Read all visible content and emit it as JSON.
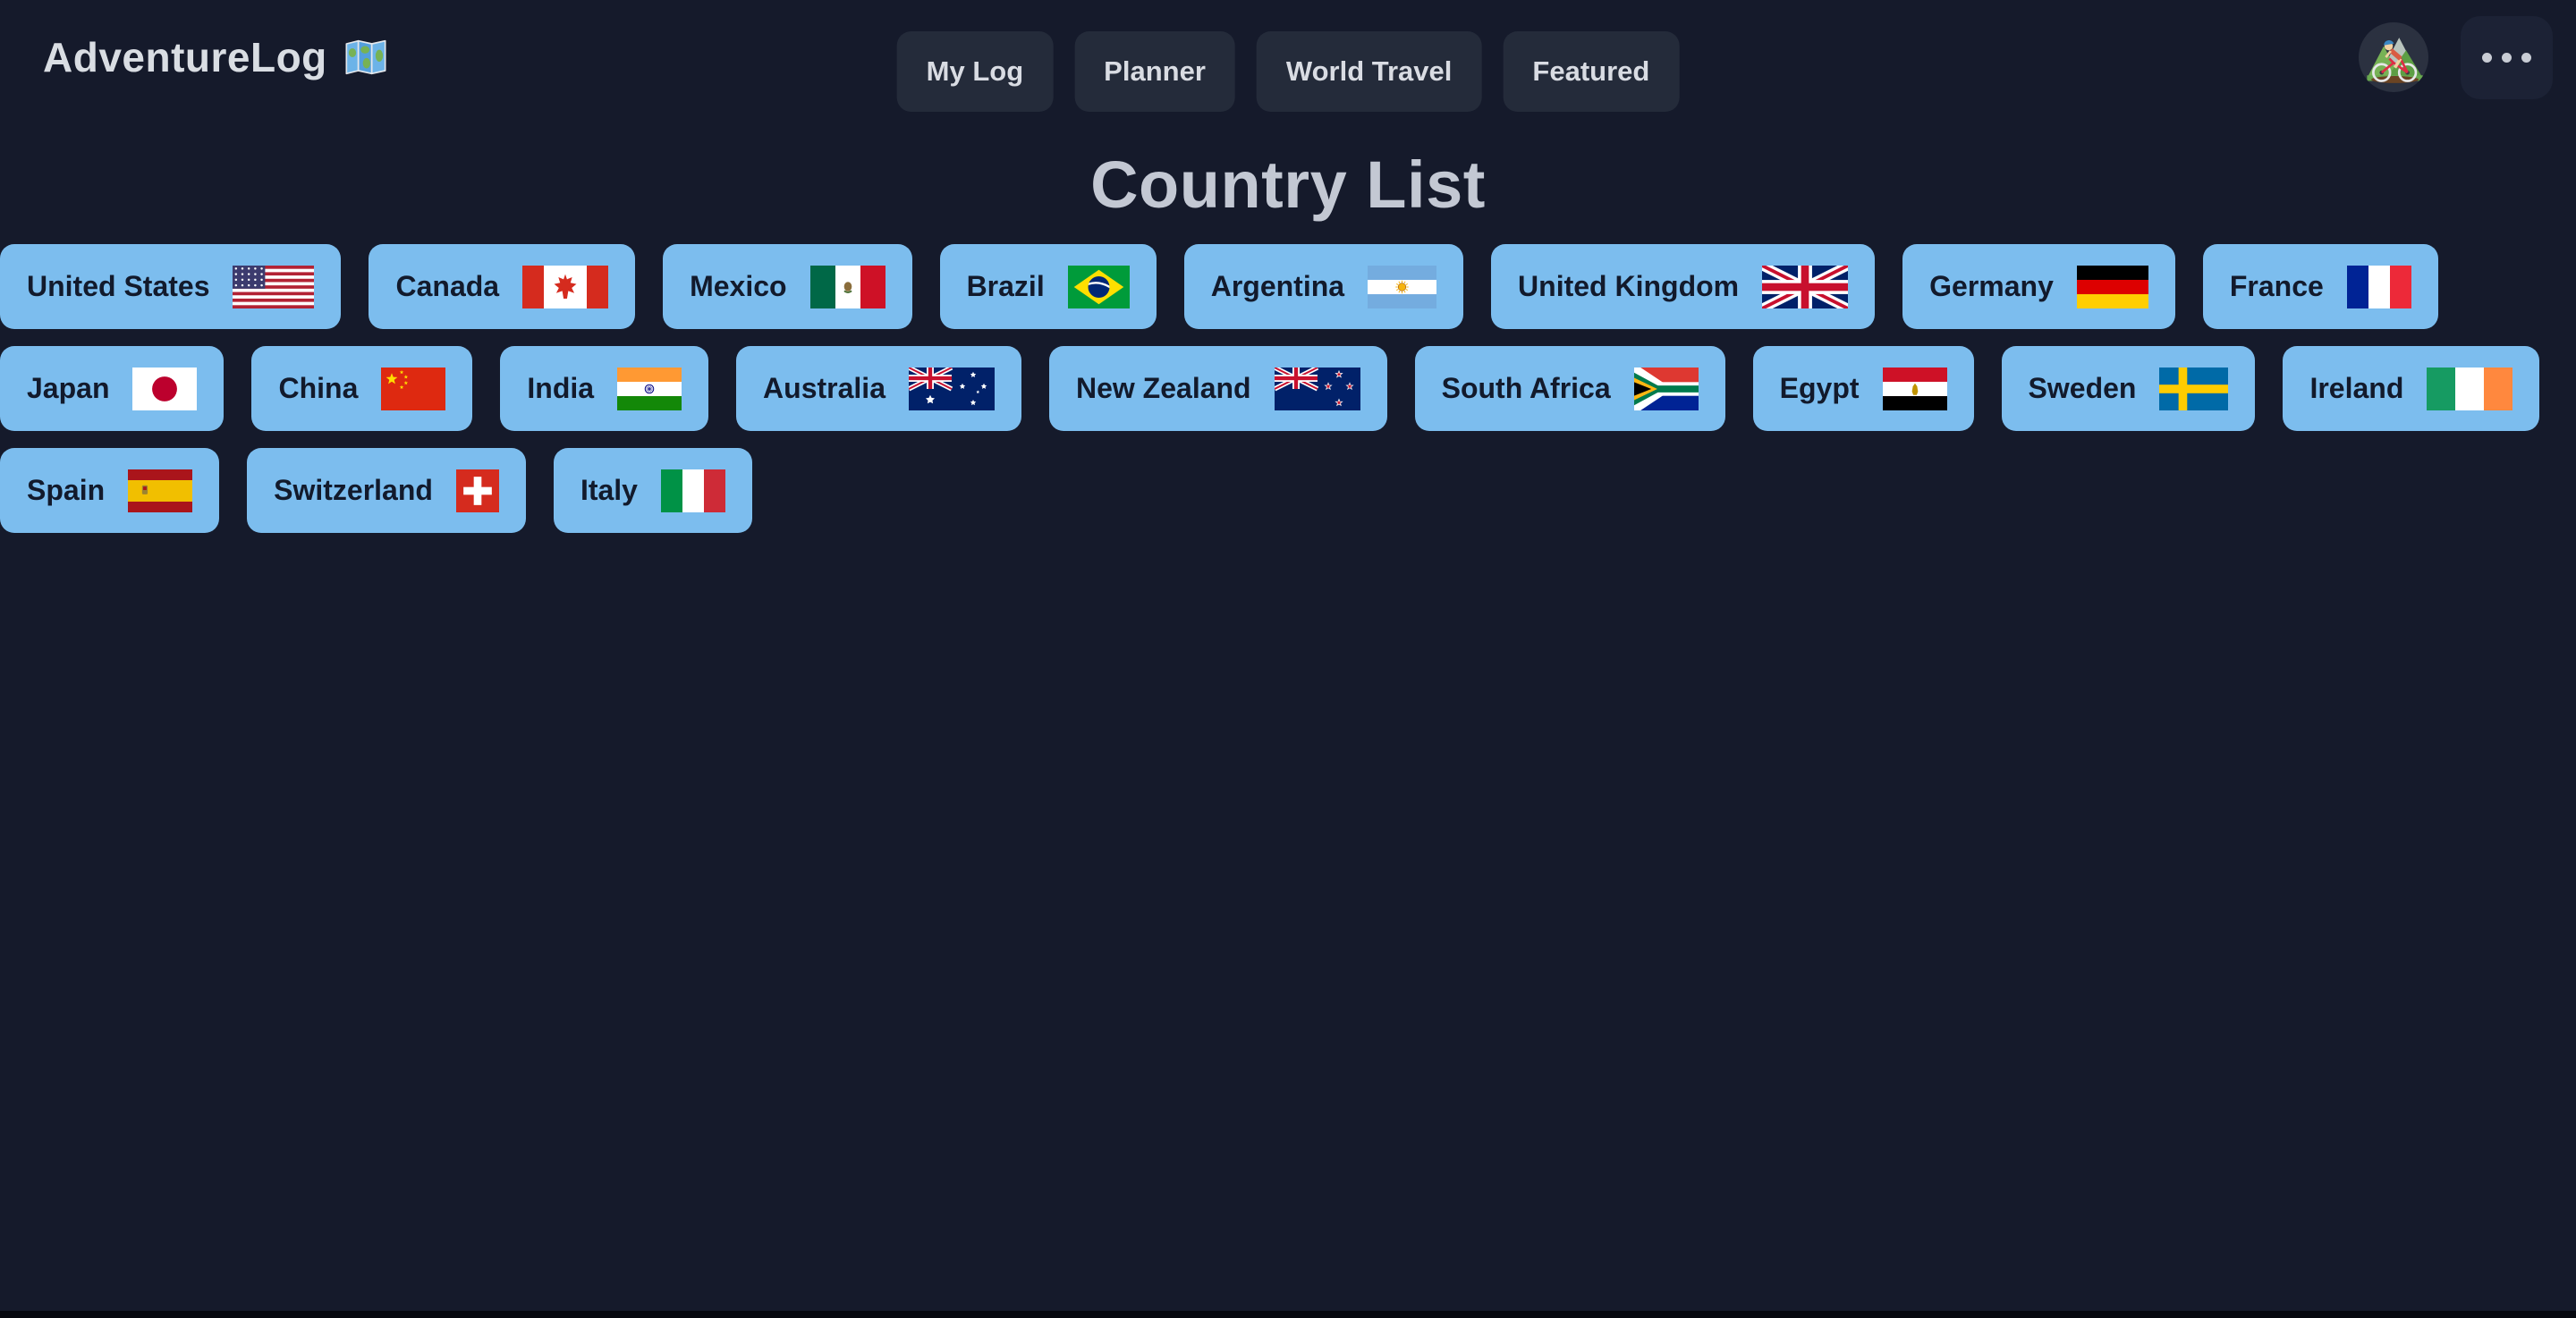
{
  "app": {
    "name": "AdventureLog",
    "logo_icon": "world-map"
  },
  "navbar": {
    "links": [
      {
        "label": "My Log"
      },
      {
        "label": "Planner"
      },
      {
        "label": "World Travel"
      },
      {
        "label": "Featured"
      }
    ],
    "avatar_icon": "mountain-biker",
    "more_menu_icon": "ellipsis"
  },
  "page": {
    "title": "Country List"
  },
  "countries": [
    {
      "name": "United States",
      "flag": "us"
    },
    {
      "name": "Canada",
      "flag": "ca"
    },
    {
      "name": "Mexico",
      "flag": "mx"
    },
    {
      "name": "Brazil",
      "flag": "br"
    },
    {
      "name": "Argentina",
      "flag": "ar"
    },
    {
      "name": "United Kingdom",
      "flag": "gb"
    },
    {
      "name": "Germany",
      "flag": "de"
    },
    {
      "name": "France",
      "flag": "fr"
    },
    {
      "name": "Japan",
      "flag": "jp"
    },
    {
      "name": "China",
      "flag": "cn"
    },
    {
      "name": "India",
      "flag": "in"
    },
    {
      "name": "Australia",
      "flag": "au"
    },
    {
      "name": "New Zealand",
      "flag": "nz"
    },
    {
      "name": "South Africa",
      "flag": "za"
    },
    {
      "name": "Egypt",
      "flag": "eg"
    },
    {
      "name": "Sweden",
      "flag": "se"
    },
    {
      "name": "Ireland",
      "flag": "ie"
    },
    {
      "name": "Spain",
      "flag": "es"
    },
    {
      "name": "Switzerland",
      "flag": "ch"
    },
    {
      "name": "Italy",
      "flag": "it"
    }
  ],
  "rows_wrap": [
    8,
    9,
    3
  ],
  "colors": {
    "background": "#151a2b",
    "nav_button_bg": "#242b3a",
    "nav_button_text": "#d9dce3",
    "more_button_bg": "#1c2235",
    "country_button_bg": "#7cbdee",
    "country_button_text": "#121a2c",
    "heading_text": "#c3c8d3",
    "logo_text": "#d9dde3",
    "bottom_edge": "#06080f"
  }
}
